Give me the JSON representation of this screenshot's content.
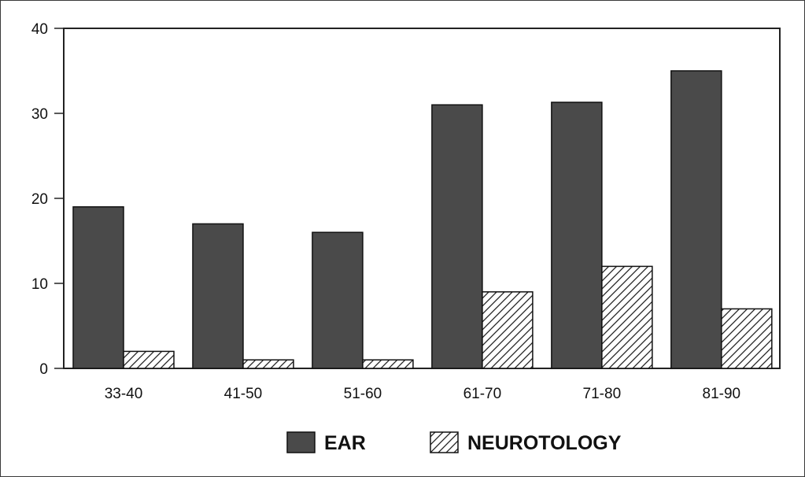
{
  "chart_data": {
    "type": "bar",
    "title": "",
    "xlabel": "",
    "ylabel": "",
    "categories": [
      "33-40",
      "41-50",
      "51-60",
      "61-70",
      "71-80",
      "81-90"
    ],
    "series": [
      {
        "name": "EAR",
        "values": [
          19,
          17,
          16,
          31,
          31.3,
          35
        ],
        "fill": "#4a4a4a",
        "pattern": "solid"
      },
      {
        "name": "NEUROTOLOGY",
        "values": [
          2,
          1,
          1,
          9,
          12,
          7
        ],
        "fill": "#ffffff",
        "pattern": "diagonal-hatch"
      }
    ],
    "ylim": [
      0,
      40
    ],
    "yticks": [
      0,
      10,
      20,
      30,
      40
    ],
    "grid": false,
    "legend_position": "bottom"
  }
}
